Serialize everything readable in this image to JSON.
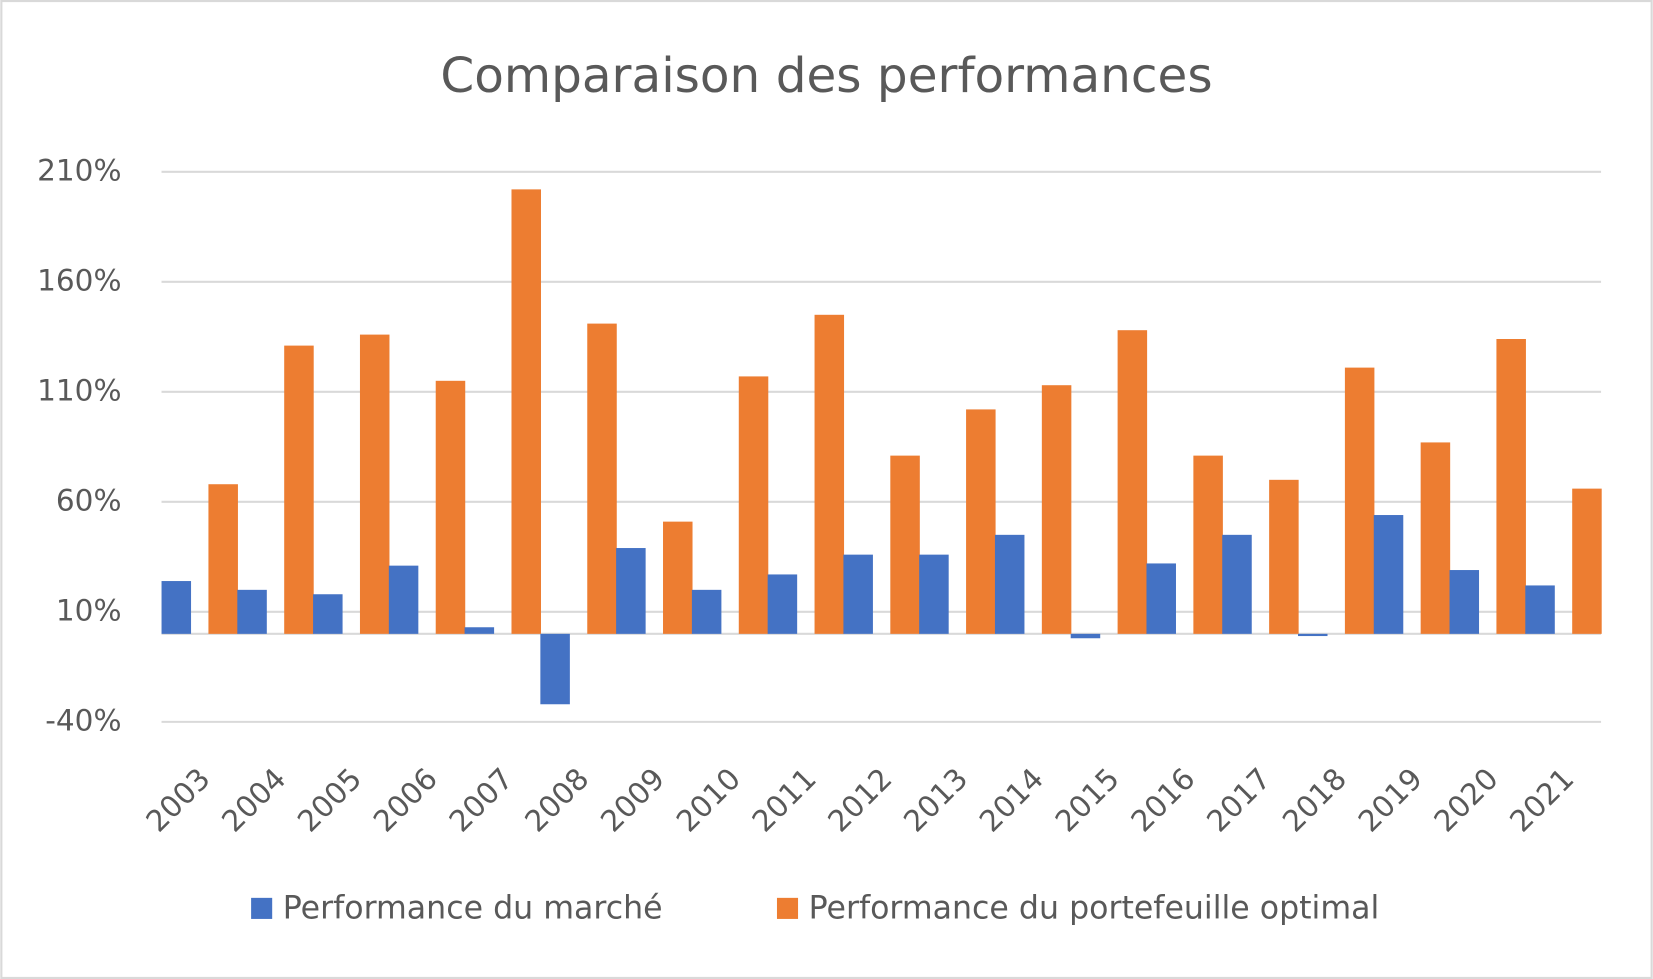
{
  "chart_data": {
    "type": "bar",
    "title": "Comparaison des performances",
    "categories": [
      "2003",
      "2004",
      "2005",
      "2006",
      "2007",
      "2008",
      "2009",
      "2010",
      "2011",
      "2012",
      "2013",
      "2014",
      "2015",
      "2016",
      "2017",
      "2018",
      "2019",
      "2020",
      "2021"
    ],
    "series": [
      {
        "name": "Performance du marché",
        "color": "#4472c4",
        "values": [
          24,
          20,
          18,
          31,
          3,
          -32,
          39,
          20,
          27,
          36,
          36,
          45,
          -2,
          32,
          45,
          -1,
          54,
          29,
          22
        ]
      },
      {
        "name": "Performance du portefeuille optimal",
        "color": "#ed7d31",
        "values": [
          68,
          131,
          136,
          115,
          202,
          141,
          51,
          117,
          145,
          81,
          102,
          113,
          138,
          81,
          70,
          121,
          87,
          134,
          66
        ]
      }
    ],
    "ylim": [
      -40,
      210
    ],
    "yticks": [
      {
        "value": -40,
        "label": "-40%"
      },
      {
        "value": 10,
        "label": "10%"
      },
      {
        "value": 60,
        "label": "60%"
      },
      {
        "value": 110,
        "label": "110%"
      },
      {
        "value": 160,
        "label": "160%"
      },
      {
        "value": 210,
        "label": "210%"
      }
    ],
    "grid": true,
    "legend": "bottom"
  }
}
